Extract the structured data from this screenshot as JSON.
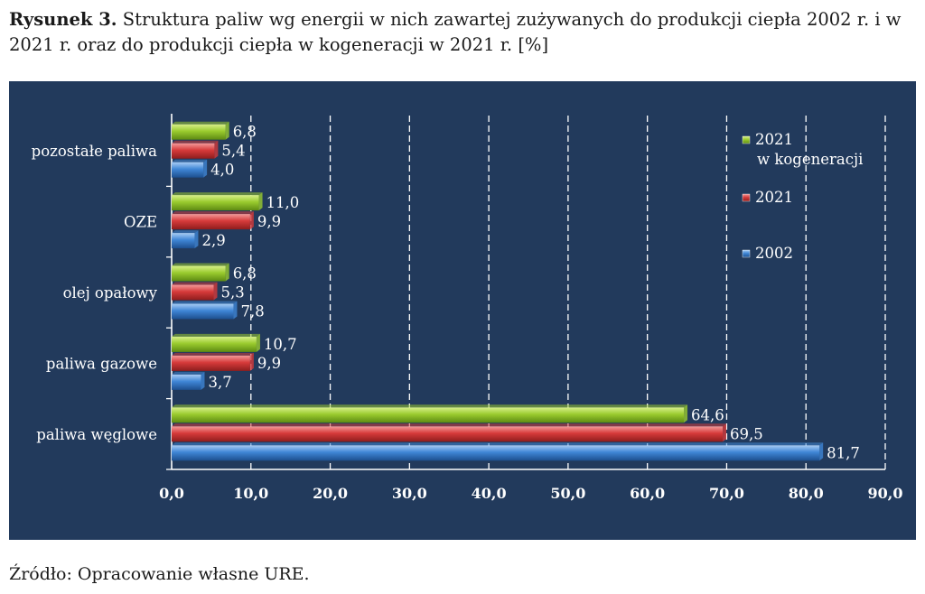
{
  "caption": {
    "label": "Rysunek 3.",
    "text": "Struktura paliw wg energii w nich zawartej zużywanych do produkcji ciepła 2002 r. i w 2021 r. oraz do produkcji ciepła w kogeneracji w 2021 r. [%]"
  },
  "source": "Źródło: Opracowanie własne URE.",
  "chart_data": {
    "type": "bar",
    "orientation": "horizontal",
    "categories": [
      "pozostałe paliwa",
      "OZE",
      "olej opałowy",
      "paliwa gazowe",
      "paliwa węglowe"
    ],
    "series": [
      {
        "name": "2021\nw kogeneracji",
        "color": "#9acb2e",
        "values": [
          6.8,
          11.0,
          6.8,
          10.7,
          64.6
        ],
        "labels": [
          "6,8",
          "11,0",
          "6,8",
          "10,7",
          "64,6"
        ]
      },
      {
        "name": "2021",
        "color": "#d63a3a",
        "values": [
          5.4,
          9.9,
          5.3,
          9.9,
          69.5
        ],
        "labels": [
          "5,4",
          "9,9",
          "5,3",
          "9,9",
          "69,5"
        ]
      },
      {
        "name": "2002",
        "color": "#3f86d6",
        "values": [
          4.0,
          2.9,
          7.8,
          3.7,
          81.7
        ],
        "labels": [
          "4,0",
          "2,9",
          "7,8",
          "3,7",
          "81,7"
        ]
      }
    ],
    "xlim": [
      0,
      90
    ],
    "xticks": [
      0,
      10,
      20,
      30,
      40,
      50,
      60,
      70,
      80,
      90
    ],
    "xtick_labels": [
      "0,0",
      "10,0",
      "20,0",
      "30,0",
      "40,0",
      "50,0",
      "60,0",
      "70,0",
      "80,0",
      "90,0"
    ],
    "grid": "vertical dashed",
    "legend": "right"
  }
}
